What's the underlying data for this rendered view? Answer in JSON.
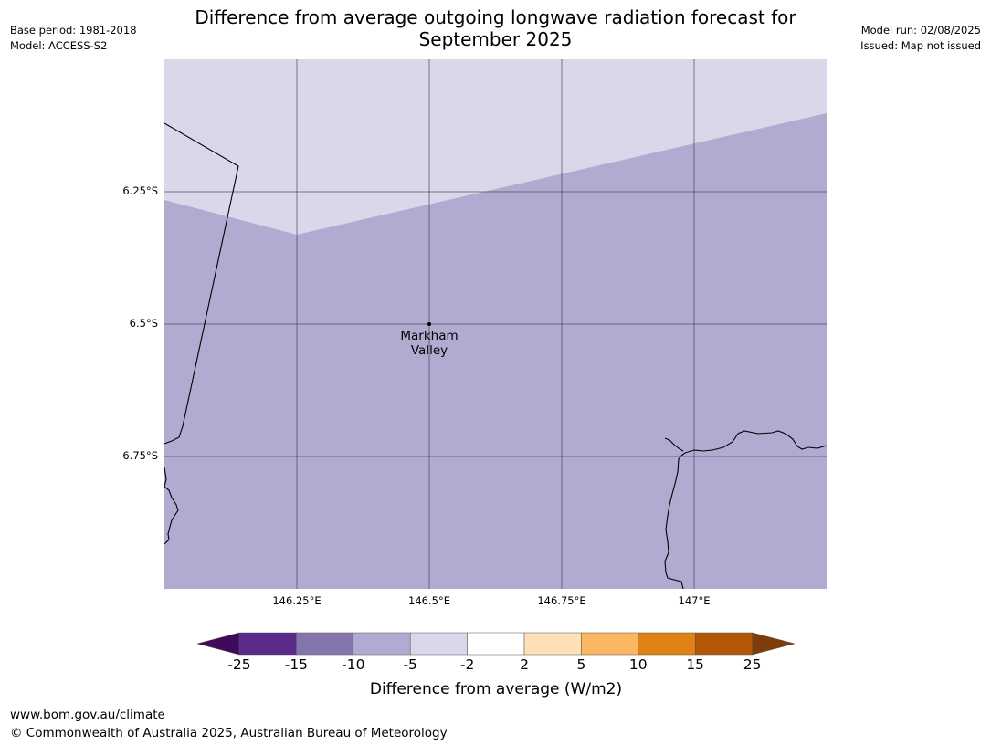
{
  "header": {
    "title_line1": "Difference from average outgoing longwave radiation forecast for",
    "title_line2": "September 2025",
    "base_period": "Base period: 1981-2018",
    "model": "Model: ACCESS-S2",
    "model_run": "Model run: 02/08/2025",
    "issued": "Issued: Map not issued"
  },
  "map": {
    "extent": {
      "lon_min": 146.0,
      "lon_max": 147.25,
      "lat_min": -7.0,
      "lat_max": -6.0
    },
    "latitude_labels": [
      "6.25°S",
      "6.5°S",
      "6.75°S"
    ],
    "longitude_labels": [
      "146.25°E",
      "146.5°E",
      "146.75°E",
      "147°E"
    ],
    "place": {
      "name_line1": "Markham",
      "name_line2": "Valley",
      "lon": 146.5,
      "lat": -6.5
    },
    "fill_colors": {
      "band_-5_to_-2": "#d8d8ea",
      "band_-10_to_-5": "#b1abd2"
    }
  },
  "colorbar": {
    "label": "Difference from average (W/m2)",
    "ticks": [
      "-25",
      "-15",
      "-10",
      "-5",
      "-2",
      "2",
      "5",
      "10",
      "15",
      "25"
    ],
    "colors": [
      "#3f0a5c",
      "#5b2a8b",
      "#8475ad",
      "#b1abd2",
      "#d8d8ea",
      "#ffffff",
      "#fee0b6",
      "#fbb761",
      "#e08214",
      "#b35806",
      "#7f3b08"
    ]
  },
  "footer": {
    "url": "www.bom.gov.au/climate",
    "copyright": "© Commonwealth of Australia 2025, Australian Bureau of Meteorology"
  }
}
